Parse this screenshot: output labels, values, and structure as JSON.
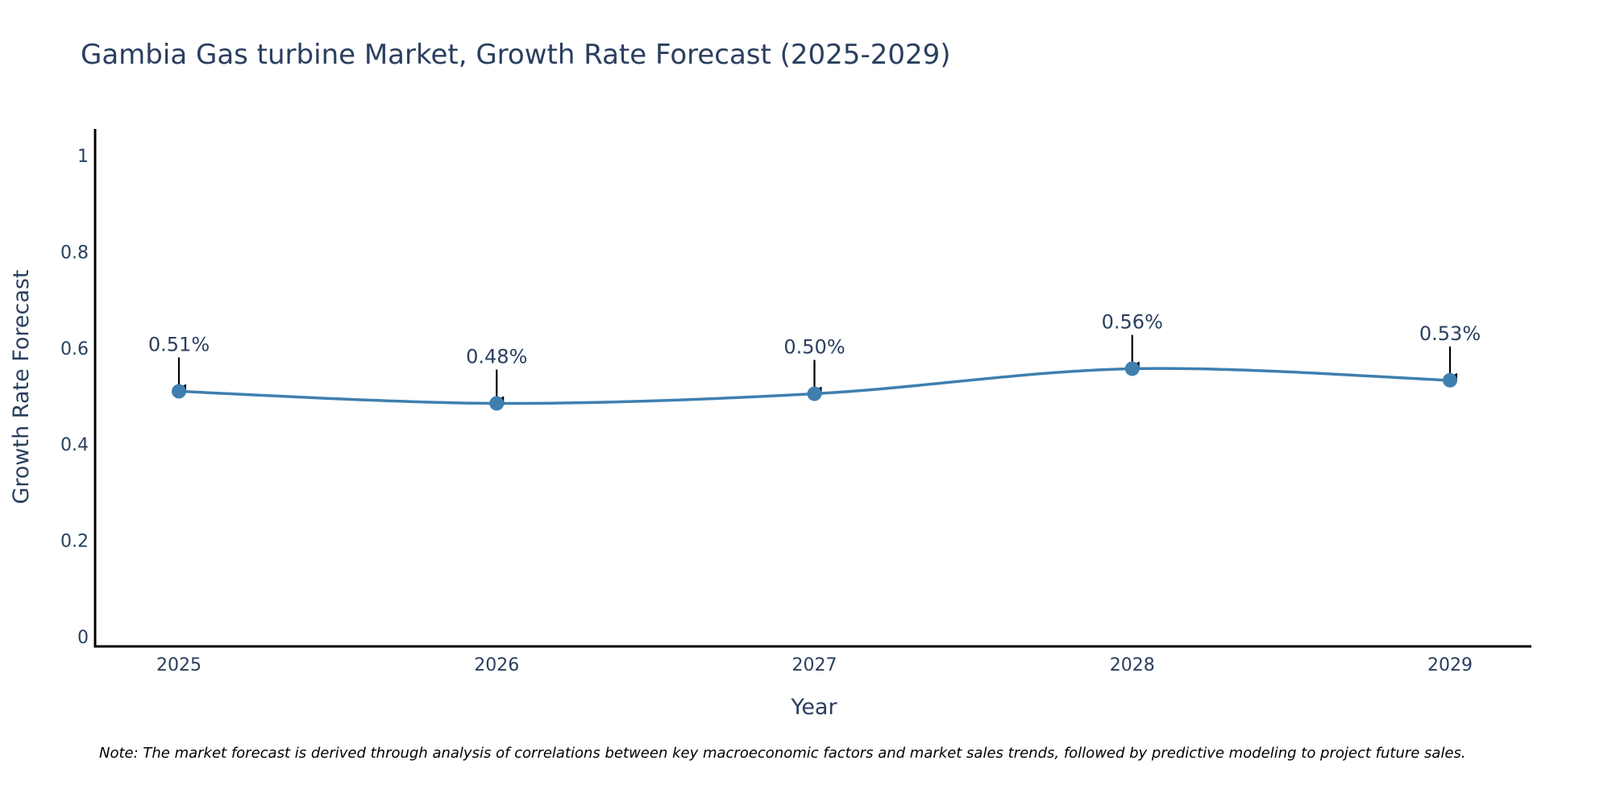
{
  "chart_data": {
    "type": "line",
    "title": "Gambia Gas turbine Market, Growth Rate Forecast (2025-2029)",
    "xlabel": "Year",
    "ylabel": "Growth Rate Forecast",
    "categories": [
      "2025",
      "2026",
      "2027",
      "2028",
      "2029"
    ],
    "values": [
      0.51,
      0.485,
      0.505,
      0.557,
      0.533
    ],
    "data_labels": [
      "0.51%",
      "0.48%",
      "0.50%",
      "0.56%",
      "0.53%"
    ],
    "ylim": [
      0,
      1.05
    ],
    "yticks": [
      0,
      0.2,
      0.4,
      0.6,
      0.8,
      1
    ],
    "ytick_labels": [
      "0",
      "0.2",
      "0.4",
      "0.6",
      "0.8",
      "1"
    ],
    "grid": false,
    "line_color": "#3f7fb0",
    "marker_color": "#3f7fb0",
    "arrow_color": "#000000",
    "text_color": "#2a3f5f",
    "axis_color": "#000000"
  },
  "note": "Note: The market forecast is derived through analysis of correlations between key macroeconomic factors and market sales trends, followed by predictive modeling to project future sales."
}
